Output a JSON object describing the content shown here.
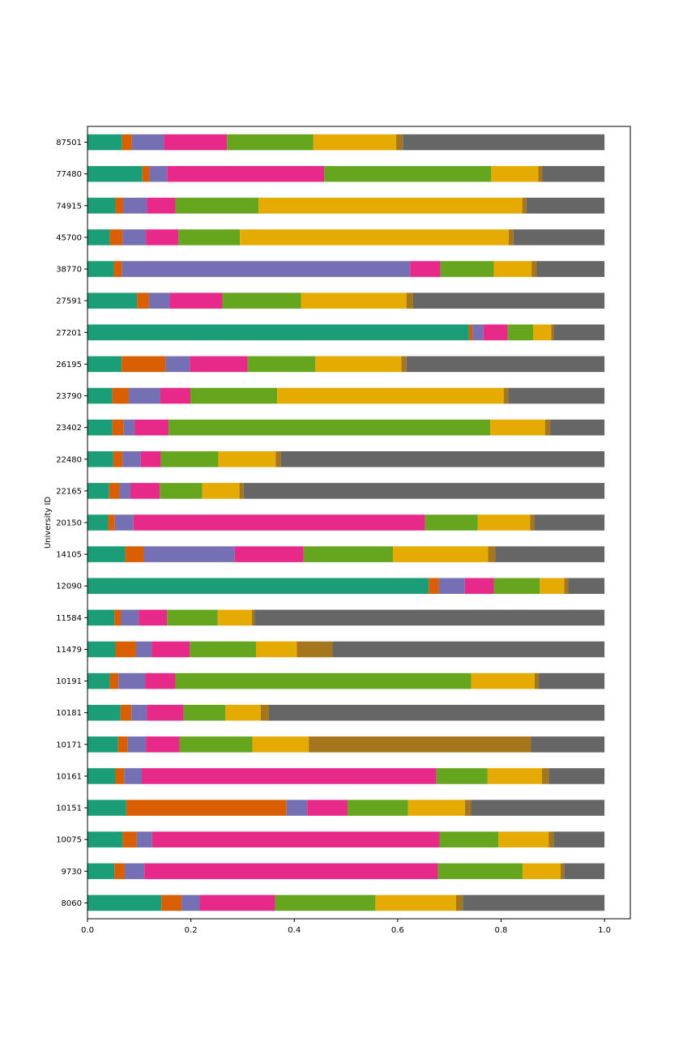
{
  "chart_data": {
    "type": "bar",
    "orientation": "horizontal",
    "stacked": true,
    "title": "",
    "xlabel": "",
    "ylabel": "University ID",
    "xlim": [
      0,
      1.05
    ],
    "xticks": [
      "0.0",
      "0.2",
      "0.4",
      "0.6",
      "0.8",
      "1.0"
    ],
    "grid": false,
    "legend": "none",
    "categories": [
      "8060",
      "9730",
      "10075",
      "10151",
      "10161",
      "10171",
      "10181",
      "10191",
      "11479",
      "11584",
      "12090",
      "14105",
      "20150",
      "22165",
      "22480",
      "23402",
      "23790",
      "26195",
      "27201",
      "27591",
      "38770",
      "45700",
      "74915",
      "77480",
      "87501"
    ],
    "colors": [
      "#1b9e77",
      "#d95f02",
      "#7570b3",
      "#e7298a",
      "#66a61e",
      "#e6ab02",
      "#a6761d",
      "#666666"
    ],
    "rows": [
      [
        0.143,
        0.039,
        0.035,
        0.146,
        0.194,
        0.156,
        0.013,
        0.274
      ],
      [
        0.052,
        0.02,
        0.038,
        0.568,
        0.164,
        0.073,
        0.007,
        0.078
      ],
      [
        0.068,
        0.027,
        0.03,
        0.556,
        0.114,
        0.097,
        0.01,
        0.098
      ],
      [
        0.075,
        0.31,
        0.04,
        0.078,
        0.117,
        0.11,
        0.012,
        0.258
      ],
      [
        0.054,
        0.017,
        0.034,
        0.57,
        0.099,
        0.105,
        0.013,
        0.108
      ],
      [
        0.059,
        0.019,
        0.035,
        0.065,
        0.141,
        0.109,
        0.43,
        0.142
      ],
      [
        0.064,
        0.021,
        0.03,
        0.071,
        0.081,
        0.068,
        0.016,
        0.649
      ],
      [
        0.043,
        0.017,
        0.052,
        0.058,
        0.572,
        0.123,
        0.008,
        0.127
      ],
      [
        0.054,
        0.04,
        0.03,
        0.074,
        0.128,
        0.079,
        0.069,
        0.526
      ],
      [
        0.052,
        0.013,
        0.034,
        0.055,
        0.098,
        0.066,
        0.005,
        0.677
      ],
      [
        0.66,
        0.02,
        0.05,
        0.056,
        0.089,
        0.047,
        0.008,
        0.07
      ],
      [
        0.073,
        0.036,
        0.176,
        0.133,
        0.173,
        0.184,
        0.014,
        0.211
      ],
      [
        0.04,
        0.013,
        0.036,
        0.564,
        0.102,
        0.101,
        0.009,
        0.135
      ],
      [
        0.042,
        0.02,
        0.021,
        0.057,
        0.082,
        0.072,
        0.008,
        0.698
      ],
      [
        0.05,
        0.018,
        0.035,
        0.039,
        0.111,
        0.111,
        0.01,
        0.626
      ],
      [
        0.048,
        0.022,
        0.021,
        0.066,
        0.622,
        0.106,
        0.01,
        0.105
      ],
      [
        0.048,
        0.032,
        0.061,
        0.058,
        0.168,
        0.438,
        0.009,
        0.186
      ],
      [
        0.066,
        0.085,
        0.047,
        0.112,
        0.131,
        0.166,
        0.01,
        0.383
      ],
      [
        0.738,
        0.007,
        0.021,
        0.047,
        0.049,
        0.035,
        0.005,
        0.098
      ],
      [
        0.096,
        0.023,
        0.04,
        0.102,
        0.152,
        0.204,
        0.013,
        0.37
      ],
      [
        0.051,
        0.016,
        0.557,
        0.059,
        0.103,
        0.073,
        0.01,
        0.131
      ],
      [
        0.043,
        0.025,
        0.045,
        0.063,
        0.119,
        0.52,
        0.009,
        0.176
      ],
      [
        0.054,
        0.015,
        0.046,
        0.055,
        0.161,
        0.51,
        0.008,
        0.151
      ],
      [
        0.106,
        0.014,
        0.034,
        0.304,
        0.323,
        0.091,
        0.008,
        0.12
      ],
      [
        0.067,
        0.019,
        0.062,
        0.122,
        0.167,
        0.16,
        0.013,
        0.39
      ]
    ]
  }
}
